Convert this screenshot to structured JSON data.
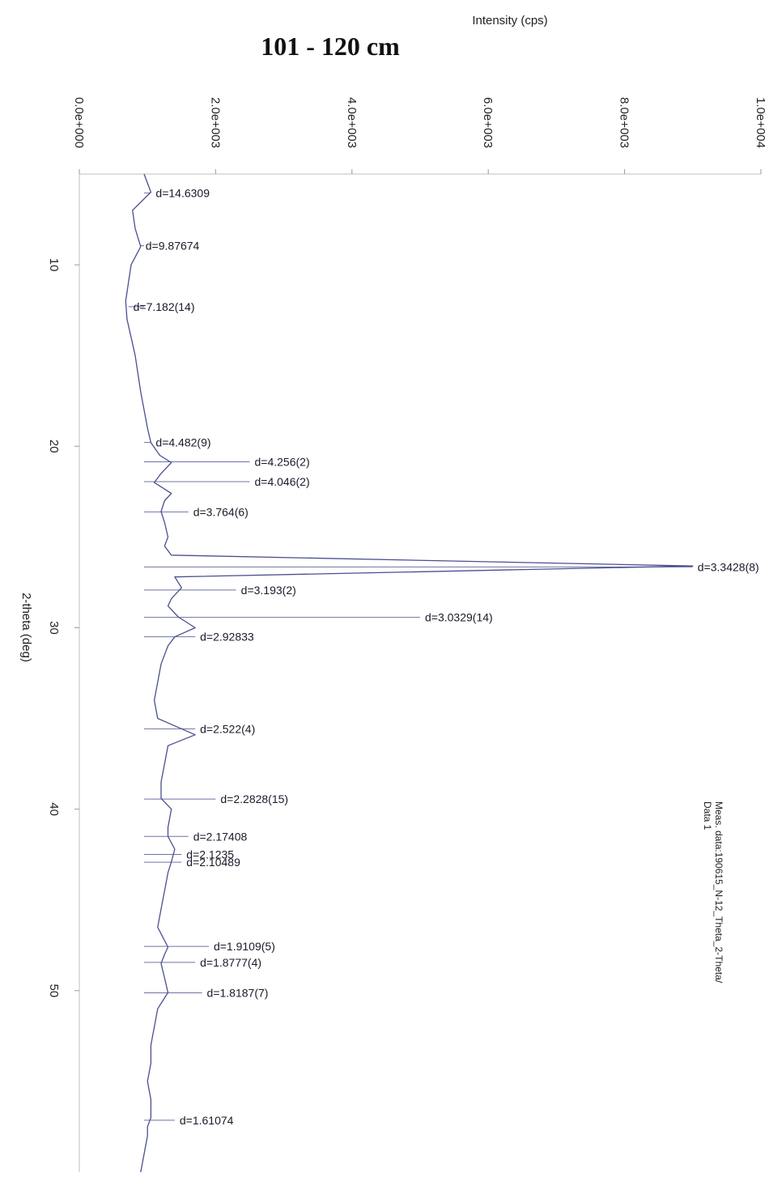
{
  "chart_data": {
    "type": "line",
    "title": "101 - 120 cm",
    "ylabel": "Intensity (cps)",
    "xlabel": "2-theta (deg)",
    "y_tick_labels": [
      "0.0e+000",
      "2.0e+003",
      "4.0e+003",
      "6.0e+003",
      "8.0e+003",
      "1.0e+004"
    ],
    "y_ticks": [
      0,
      2000,
      4000,
      6000,
      8000,
      10000
    ],
    "x_ticks": [
      10,
      20,
      30,
      40,
      50
    ],
    "xlim": [
      5,
      60
    ],
    "ylim": [
      0,
      10000
    ],
    "legend": [
      "Meas. data:190615_N-12_Theta_2-Theta/",
      "Data 1"
    ],
    "series": [
      {
        "x": [
          5.0,
          6.0,
          7.0,
          8.0,
          9.0,
          10.0,
          11.0,
          12.0,
          13.0,
          14.0,
          15.0,
          16.0,
          17.0,
          18.0,
          19.0,
          19.8,
          20.5,
          20.9,
          21.5,
          22.0,
          22.6,
          23.0,
          23.6,
          24.2,
          25.0,
          25.5,
          26.0,
          26.6,
          27.2,
          27.8,
          28.4,
          28.8,
          29.4,
          30.0,
          30.5,
          31.0,
          32.0,
          33.0,
          34.0,
          35.0,
          35.9,
          36.5,
          37.5,
          38.5,
          39.4,
          40.0,
          41.0,
          41.5,
          42.2,
          42.9,
          43.5,
          44.5,
          45.5,
          46.5,
          47.6,
          48.0,
          48.5,
          49.3,
          50.1,
          51.0,
          52.0,
          53.0,
          54.0,
          55.0,
          56.0,
          57.0,
          57.5,
          58.0,
          59.0,
          60.0
        ],
        "y": [
          950,
          1050,
          780,
          820,
          900,
          760,
          720,
          680,
          700,
          760,
          820,
          860,
          900,
          950,
          1000,
          1050,
          1180,
          1350,
          1200,
          1100,
          1350,
          1250,
          1200,
          1250,
          1300,
          1250,
          1350,
          9000,
          1400,
          1500,
          1350,
          1300,
          1450,
          1700,
          1400,
          1300,
          1200,
          1150,
          1100,
          1150,
          1700,
          1300,
          1250,
          1200,
          1200,
          1350,
          1300,
          1300,
          1400,
          1350,
          1300,
          1250,
          1200,
          1150,
          1300,
          1250,
          1200,
          1250,
          1300,
          1150,
          1100,
          1050,
          1050,
          1000,
          1050,
          1050,
          1000,
          1000,
          950,
          900
        ]
      }
    ],
    "peaks": [
      {
        "two_theta": 6.04,
        "intensity": 1050,
        "label": "d=14.6309"
      },
      {
        "two_theta": 8.95,
        "intensity": 900,
        "label": "d=9.87674"
      },
      {
        "two_theta": 12.31,
        "intensity": 720,
        "label": "d=7.182(14)"
      },
      {
        "two_theta": 19.79,
        "intensity": 1050,
        "label": "d=4.482(9)"
      },
      {
        "two_theta": 20.86,
        "intensity": 2500,
        "label": "d=4.256(2)"
      },
      {
        "two_theta": 21.95,
        "intensity": 2500,
        "label": "d=4.046(2)"
      },
      {
        "two_theta": 23.62,
        "intensity": 1600,
        "label": "d=3.764(6)"
      },
      {
        "two_theta": 26.65,
        "intensity": 9000,
        "label": "d=3.3428(8)"
      },
      {
        "two_theta": 27.92,
        "intensity": 2300,
        "label": "d=3.193(2)"
      },
      {
        "two_theta": 29.43,
        "intensity": 5000,
        "label": "d=3.0329(14)"
      },
      {
        "two_theta": 30.5,
        "intensity": 1700,
        "label": "d=2.92833"
      },
      {
        "two_theta": 35.57,
        "intensity": 1700,
        "label": "d=2.522(4)"
      },
      {
        "two_theta": 39.44,
        "intensity": 2000,
        "label": "d=2.2828(15)"
      },
      {
        "two_theta": 41.5,
        "intensity": 1600,
        "label": "d=2.17408"
      },
      {
        "two_theta": 42.49,
        "intensity": 1500,
        "label": "d=2.1235"
      },
      {
        "two_theta": 42.92,
        "intensity": 1500,
        "label": "d=2.10489"
      },
      {
        "two_theta": 47.56,
        "intensity": 1900,
        "label": "d=1.9109(5)"
      },
      {
        "two_theta": 48.44,
        "intensity": 1700,
        "label": "d=1.8777(4)"
      },
      {
        "two_theta": 50.12,
        "intensity": 1800,
        "label": "d=1.8187(7)"
      },
      {
        "two_theta": 57.14,
        "intensity": 1400,
        "label": "d=1.61074"
      }
    ]
  }
}
